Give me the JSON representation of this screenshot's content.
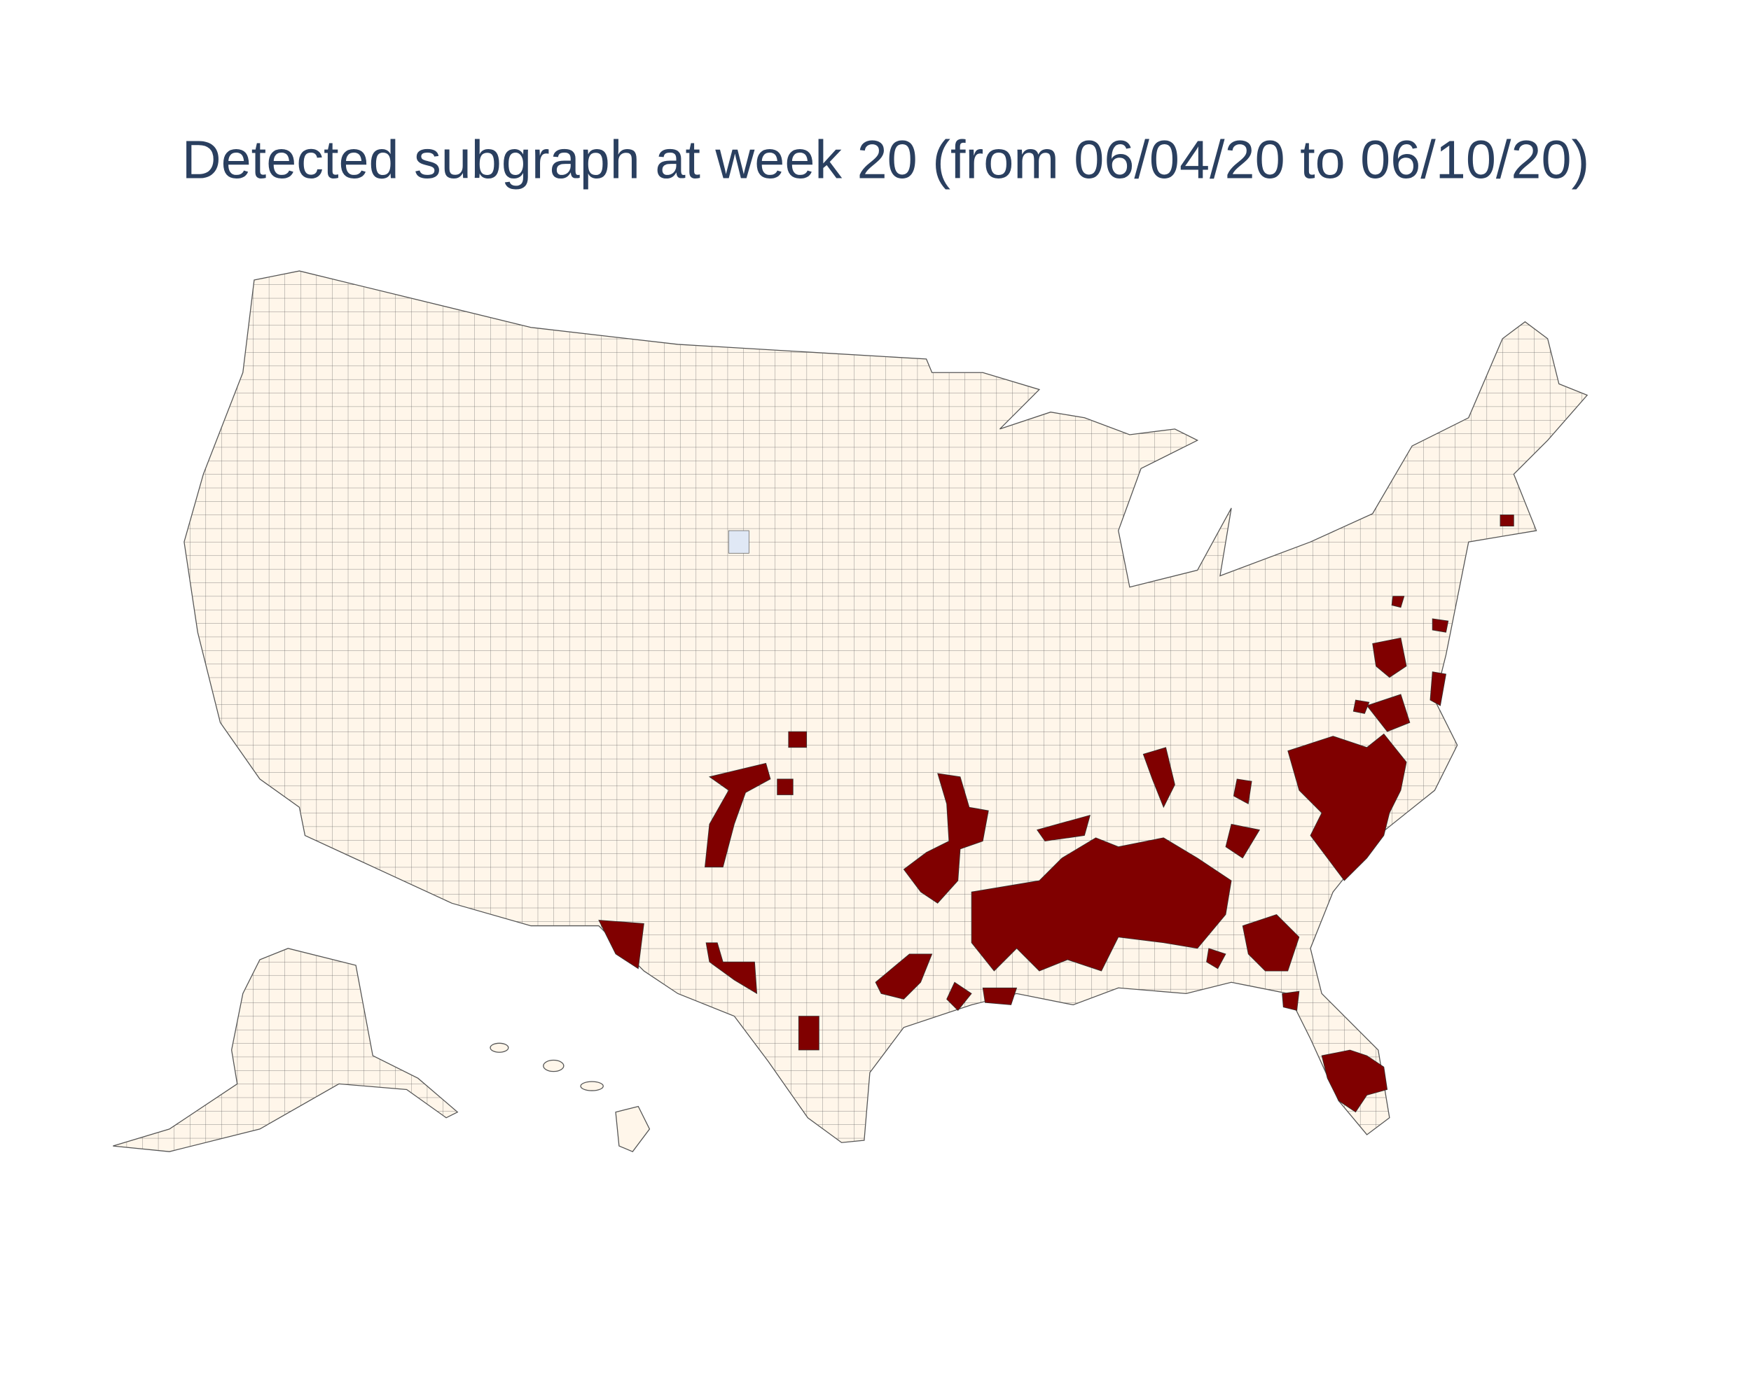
{
  "title": "Detected subgraph at week 20 (from 06/04/20 to 06/10/20)"
}
